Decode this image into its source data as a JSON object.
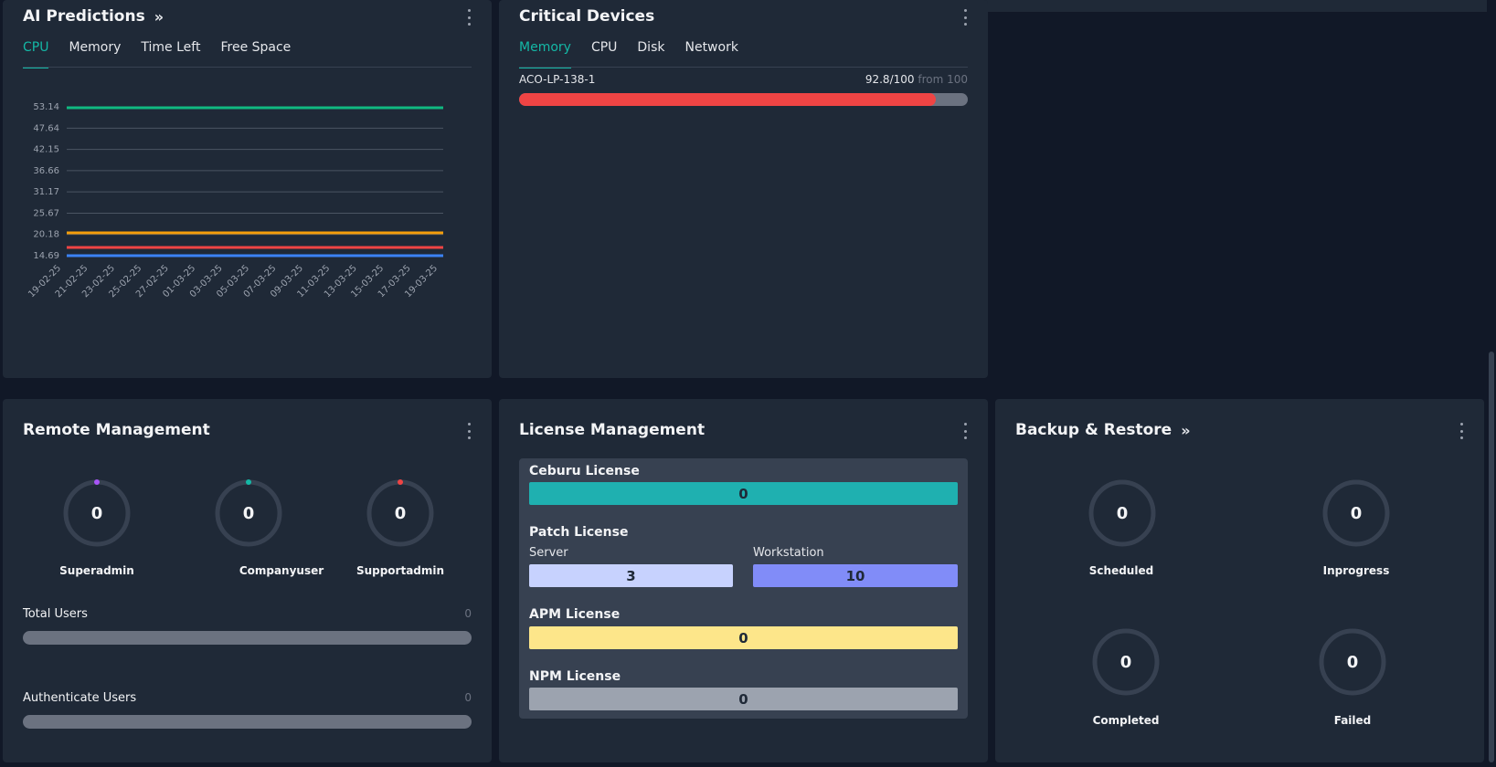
{
  "ai_predictions": {
    "title": "AI Predictions",
    "tabs": [
      "CPU",
      "Memory",
      "Time Left",
      "Free Space"
    ],
    "active_tab": "CPU"
  },
  "chart_data": {
    "type": "line",
    "title": "AI Predictions",
    "x": [
      "19-02-25",
      "21-02-25",
      "23-02-25",
      "25-02-25",
      "27-02-25",
      "01-03-25",
      "03-03-25",
      "05-03-25",
      "07-03-25",
      "09-03-25",
      "11-03-25",
      "13-03-25",
      "15-03-25",
      "17-03-25",
      "19-03-25"
    ],
    "y_ticks": [
      "53.14",
      "47.64",
      "42.15",
      "36.66",
      "31.17",
      "25.67",
      "20.18",
      "14.69"
    ],
    "ylim": [
      14.69,
      53.14
    ],
    "series": [
      {
        "name": "series-green",
        "color": "#10b981",
        "values": [
          52.9,
          52.9,
          52.9,
          52.9,
          52.9,
          52.9,
          52.9,
          52.9,
          52.9,
          52.9,
          52.9,
          52.9,
          52.9,
          52.9,
          52.9
        ]
      },
      {
        "name": "series-orange",
        "color": "#f59e0b",
        "values": [
          20.6,
          20.6,
          20.6,
          20.6,
          20.6,
          20.6,
          20.6,
          20.6,
          20.6,
          20.6,
          20.6,
          20.6,
          20.6,
          20.6,
          20.6
        ]
      },
      {
        "name": "series-red",
        "color": "#ef4444",
        "values": [
          16.8,
          16.8,
          16.8,
          16.8,
          16.8,
          16.8,
          16.8,
          16.8,
          16.8,
          16.8,
          16.8,
          16.8,
          16.8,
          16.8,
          16.8
        ]
      },
      {
        "name": "series-blue",
        "color": "#3b82f6",
        "values": [
          14.7,
          14.7,
          14.7,
          14.7,
          14.7,
          14.7,
          14.7,
          14.7,
          14.7,
          14.7,
          14.7,
          14.7,
          14.7,
          14.7,
          14.7
        ]
      }
    ]
  },
  "critical_devices": {
    "title": "Critical Devices",
    "tabs": [
      "Memory",
      "CPU",
      "Disk",
      "Network"
    ],
    "active_tab": "Memory",
    "devices": [
      {
        "name": "ACO-LP-138-1",
        "value": "92.8/100",
        "from": "from 100",
        "fraction": 0.928
      }
    ]
  },
  "remote_management": {
    "title": "Remote Management",
    "gauges": [
      {
        "label": "Superadmin",
        "value": "0",
        "color": "#a855f7"
      },
      {
        "label": "Companyuser",
        "value": "0",
        "color": "#14b8a6"
      },
      {
        "label": "Supportadmin",
        "value": "0",
        "color": "#ef4444"
      }
    ],
    "total_users": {
      "label": "Total Users",
      "count": "0"
    },
    "authenticate_users": {
      "label": "Authenticate Users",
      "count": "0"
    }
  },
  "license_management": {
    "title": "License Management",
    "ceburu": {
      "title": "Ceburu License",
      "value": "0",
      "color": "#1fb0b0"
    },
    "patch": {
      "title": "Patch License",
      "server_label": "Server",
      "server_value": "3",
      "server_color": "#c7d2fe",
      "workstation_label": "Workstation",
      "workstation_value": "10",
      "workstation_color": "#818cf8"
    },
    "apm": {
      "title": "APM License",
      "value": "0",
      "color": "#fde68a"
    },
    "npm": {
      "title": "NPM License",
      "value": "0",
      "color": "#9ca3af"
    }
  },
  "backup_restore": {
    "title": "Backup & Restore",
    "gauges": [
      {
        "label": "Scheduled",
        "value": "0"
      },
      {
        "label": "Inprogress",
        "value": "0"
      },
      {
        "label": "Completed",
        "value": "0"
      },
      {
        "label": "Failed",
        "value": "0"
      }
    ]
  }
}
